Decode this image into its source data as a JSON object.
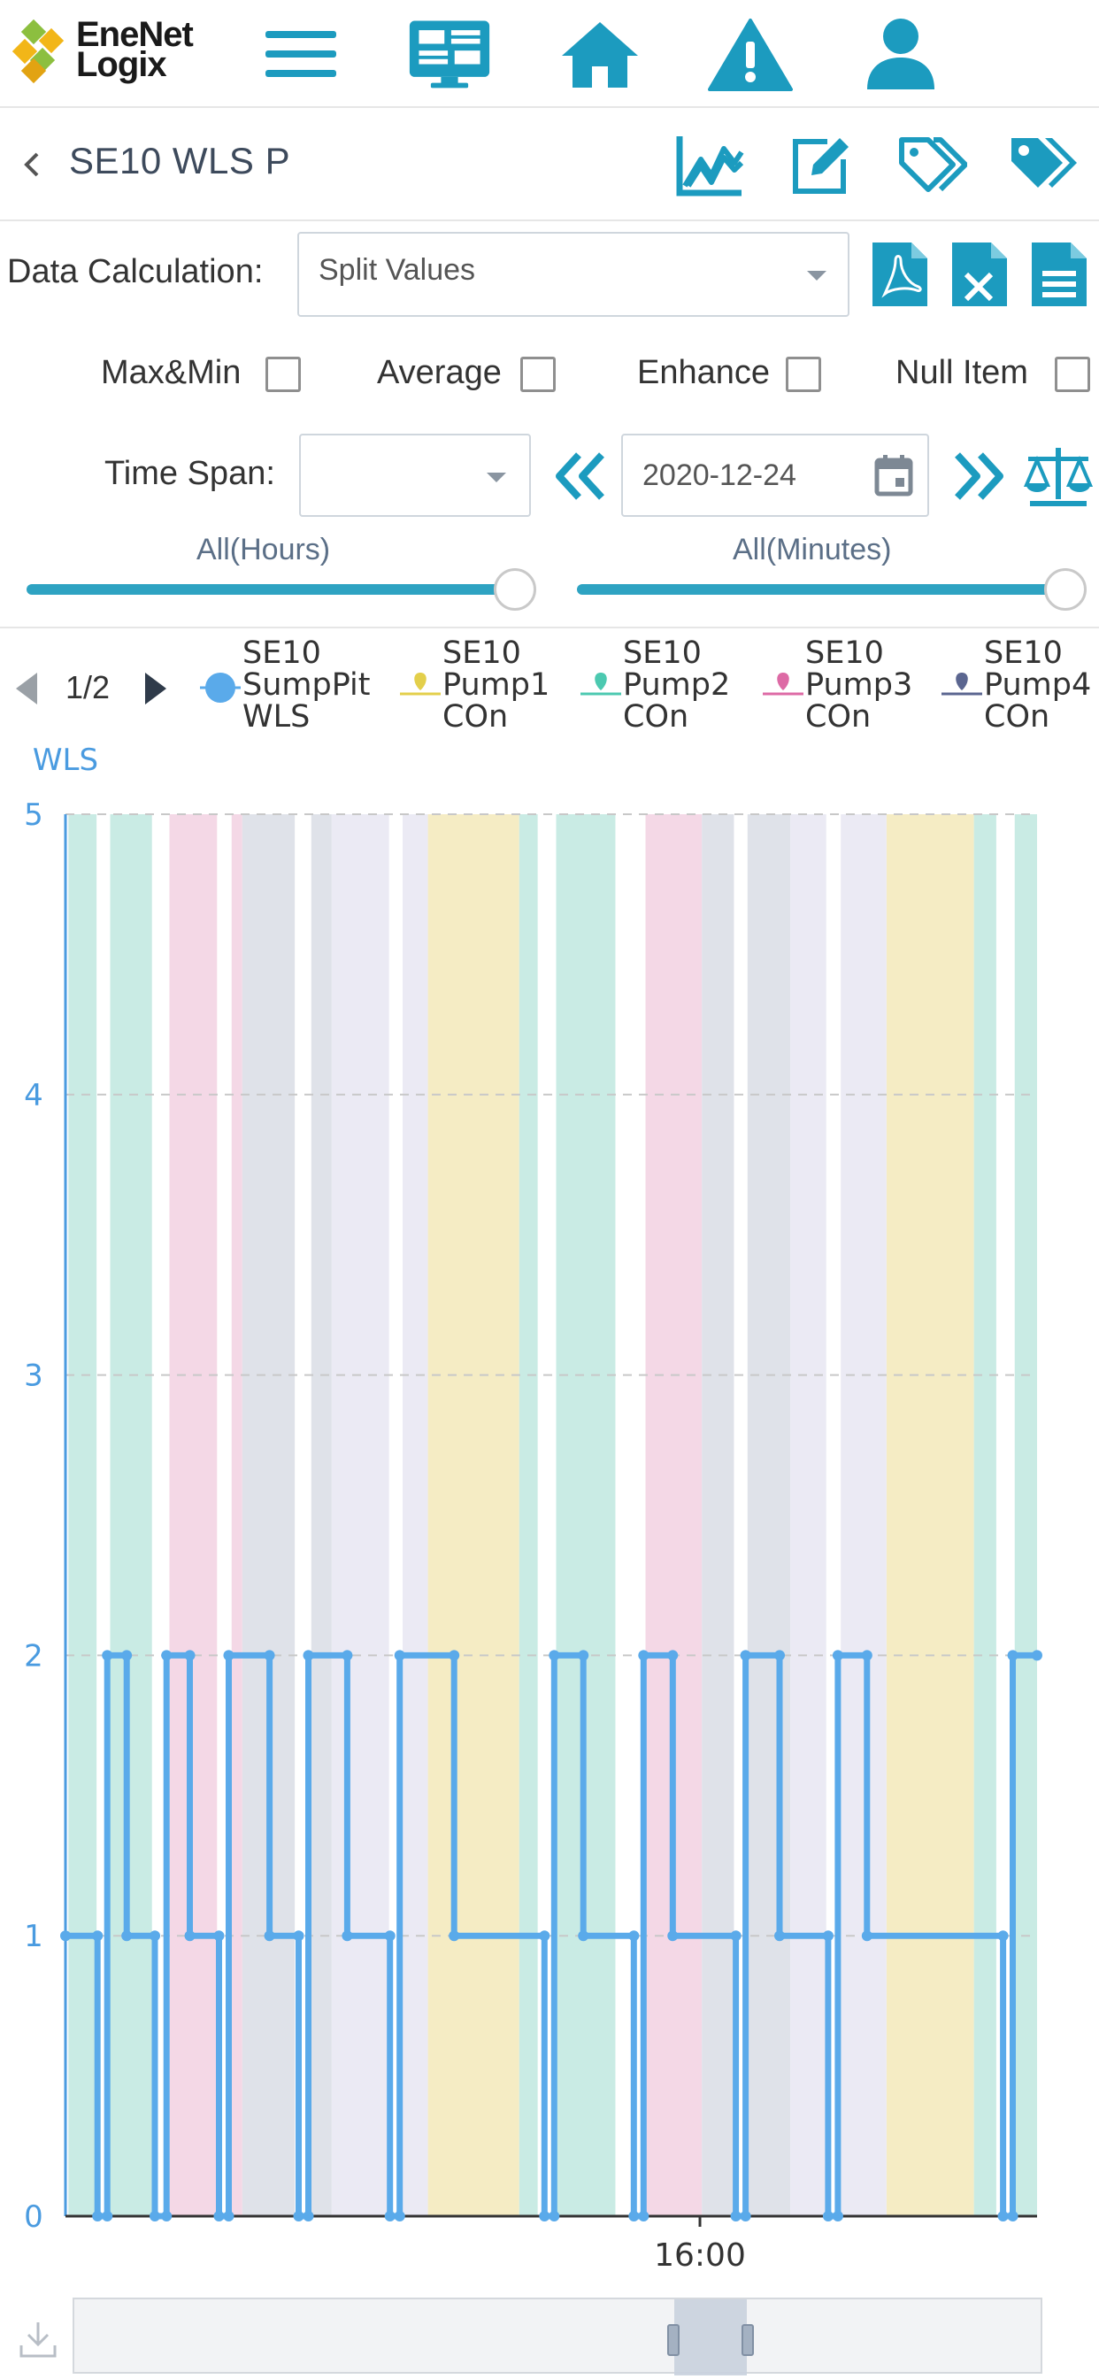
{
  "app": {
    "logo_line1": "EneNet",
    "logo_line2": "Logix"
  },
  "nav_icons": [
    "menu-icon",
    "dashboard-icon",
    "home-icon",
    "alert-icon",
    "user-icon"
  ],
  "header": {
    "title": "SE10 WLS P",
    "tools": [
      "trend-chart-icon",
      "edit-icon",
      "tags-outline-icon",
      "tags-filled-icon"
    ]
  },
  "controls": {
    "data_calc_label": "Data Calculation:",
    "data_calc_value": "Split Values",
    "export_icons": [
      "pdf-icon",
      "excel-icon",
      "document-icon"
    ],
    "checkboxes": [
      {
        "label": "Max&Min",
        "checked": false
      },
      {
        "label": "Average",
        "checked": false
      },
      {
        "label": "Enhance",
        "checked": false
      },
      {
        "label": "Null Item",
        "checked": false
      }
    ],
    "time_span_label": "Time Span:",
    "time_span_value": "",
    "date": "2020-12-24",
    "hours_label": "All(Hours)",
    "minutes_label": "All(Minutes)",
    "hours_slider_value": 1.0,
    "minutes_slider_value": 1.0
  },
  "legend": {
    "page": "1/2",
    "items": [
      {
        "line1": "SE10",
        "line2": "SumpPit",
        "line3": "WLS",
        "color": "#5aaaea",
        "marker": "circle"
      },
      {
        "line1": "SE10",
        "line2": "Pump1",
        "line3": "COn",
        "color": "#e3cf4b",
        "marker": "pin"
      },
      {
        "line1": "SE10",
        "line2": "Pump2",
        "line3": "COn",
        "color": "#4cc9b0",
        "marker": "pin"
      },
      {
        "line1": "SE10",
        "line2": "Pump3",
        "line3": "COn",
        "color": "#dd6aa5",
        "marker": "pin"
      },
      {
        "line1": "SE10",
        "line2": "Pump4",
        "line3": "COn",
        "color": "#5b6690",
        "marker": "pin"
      }
    ]
  },
  "chart_data": {
    "type": "line",
    "title": "",
    "ylabel": "WLS",
    "ylim": [
      0,
      5
    ],
    "yticks": [
      0,
      1,
      2,
      3,
      4,
      5
    ],
    "xlim": [
      0,
      100
    ],
    "xtick_labels": [
      {
        "x": 65.3,
        "label": "16:00"
      }
    ],
    "grid": true,
    "series": [
      {
        "name": "SE10 SumpPit WLS",
        "color": "#5aaaea",
        "step": true,
        "points": [
          [
            0.0,
            1
          ],
          [
            3.3,
            1
          ],
          [
            3.3,
            0
          ],
          [
            4.3,
            0
          ],
          [
            4.3,
            2
          ],
          [
            6.3,
            2
          ],
          [
            6.3,
            1
          ],
          [
            9.2,
            1
          ],
          [
            9.2,
            0
          ],
          [
            10.4,
            0
          ],
          [
            10.4,
            2
          ],
          [
            12.8,
            2
          ],
          [
            12.8,
            1
          ],
          [
            15.8,
            1
          ],
          [
            15.8,
            0
          ],
          [
            16.8,
            0
          ],
          [
            16.8,
            2
          ],
          [
            21.0,
            2
          ],
          [
            21.0,
            1
          ],
          [
            24.0,
            1
          ],
          [
            24.0,
            0
          ],
          [
            25.0,
            0
          ],
          [
            25.0,
            2
          ],
          [
            29.0,
            2
          ],
          [
            29.0,
            1
          ],
          [
            33.4,
            1
          ],
          [
            33.4,
            0
          ],
          [
            34.4,
            0
          ],
          [
            34.4,
            2
          ],
          [
            40.0,
            2
          ],
          [
            40.0,
            1
          ],
          [
            49.3,
            1
          ],
          [
            49.3,
            0
          ],
          [
            50.3,
            0
          ],
          [
            50.3,
            2
          ],
          [
            53.3,
            2
          ],
          [
            53.3,
            1
          ],
          [
            58.5,
            1
          ],
          [
            58.5,
            0
          ],
          [
            59.5,
            0
          ],
          [
            59.5,
            2
          ],
          [
            62.5,
            2
          ],
          [
            62.5,
            1
          ],
          [
            69.0,
            1
          ],
          [
            69.0,
            0
          ],
          [
            70.0,
            0
          ],
          [
            70.0,
            2
          ],
          [
            73.5,
            2
          ],
          [
            73.5,
            1
          ],
          [
            78.5,
            1
          ],
          [
            78.5,
            0
          ],
          [
            79.5,
            0
          ],
          [
            79.5,
            2
          ],
          [
            82.5,
            2
          ],
          [
            82.5,
            1
          ],
          [
            96.5,
            1
          ],
          [
            96.5,
            0
          ],
          [
            97.5,
            0
          ],
          [
            97.5,
            2
          ],
          [
            100.0,
            2
          ]
        ]
      },
      {
        "name": "SE10 Pump1 COn",
        "color": "#f5ecc4",
        "type": "band",
        "intervals": [
          [
            37.3,
            46.7
          ],
          [
            84.5,
            93.5
          ]
        ]
      },
      {
        "name": "SE10 Pump2 COn",
        "color": "#c9ebe4",
        "type": "band",
        "intervals": [
          [
            0.3,
            3.2
          ],
          [
            4.6,
            8.9
          ],
          [
            46.7,
            48.6
          ],
          [
            50.5,
            56.6
          ],
          [
            93.5,
            95.8
          ],
          [
            97.7,
            100.0
          ]
        ]
      },
      {
        "name": "SE10 Pump3 COn",
        "color": "#f4d8e6",
        "type": "band",
        "intervals": [
          [
            10.7,
            15.6
          ],
          [
            17.1,
            18.2
          ],
          [
            59.7,
            65.5
          ]
        ]
      },
      {
        "name": "SE10 Pump4 COn",
        "color": "#dfe2e9",
        "type": "band",
        "intervals": [
          [
            18.2,
            23.6
          ],
          [
            25.3,
            27.4
          ],
          [
            65.5,
            68.8
          ],
          [
            70.2,
            74.6
          ]
        ]
      },
      {
        "name": "",
        "color": "#ebeaf4",
        "type": "band",
        "intervals": [
          [
            27.4,
            33.3
          ],
          [
            34.7,
            37.3
          ],
          [
            74.6,
            78.3
          ],
          [
            79.8,
            84.5
          ]
        ]
      }
    ]
  }
}
